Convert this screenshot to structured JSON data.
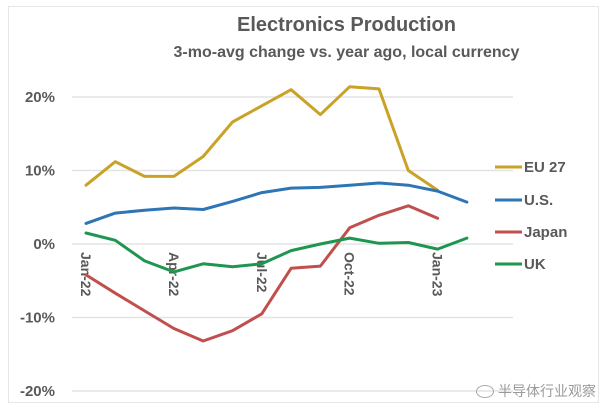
{
  "chart_data": {
    "type": "line",
    "title": "Electronics Production",
    "subtitle": "3-mo-avg change vs. year ago, local currency",
    "xlabel": "",
    "ylabel": "",
    "ylim": [
      -20,
      20
    ],
    "yticks": [
      20,
      10,
      0,
      -10,
      -20
    ],
    "ytick_labels": [
      "20%",
      "10%",
      "0%",
      "-10%",
      "-20%"
    ],
    "x": [
      "Jan-22",
      "Feb-22",
      "Mar-22",
      "Apr-22",
      "May-22",
      "Jun-22",
      "Jul-22",
      "Aug-22",
      "Sep-22",
      "Oct-22",
      "Nov-22",
      "Dec-22",
      "Jan-23",
      "Feb-23"
    ],
    "xtick_labels": [
      {
        "index": 0,
        "label": "Jan-22"
      },
      {
        "index": 3,
        "label": "Apr-22"
      },
      {
        "index": 6,
        "label": "Jul-22"
      },
      {
        "index": 9,
        "label": "Oct-22"
      },
      {
        "index": 12,
        "label": "Jan-23"
      }
    ],
    "grid": true,
    "legend_position": "right",
    "series": [
      {
        "name": "EU 27",
        "color": "#C9A227",
        "values": [
          8.0,
          11.2,
          9.2,
          9.2,
          11.9,
          16.6,
          18.8,
          21.0,
          17.6,
          21.4,
          21.1,
          10.0,
          7.3,
          null
        ]
      },
      {
        "name": "U.S.",
        "color": "#2E75B6",
        "values": [
          2.8,
          4.2,
          4.6,
          4.9,
          4.7,
          5.8,
          7.0,
          7.6,
          7.7,
          8.0,
          8.3,
          8.0,
          7.2,
          5.7
        ]
      },
      {
        "name": "Japan",
        "color": "#C0504D",
        "values": [
          -4.2,
          -6.7,
          -9.1,
          -11.5,
          -13.2,
          -11.8,
          -9.5,
          -3.3,
          -3.0,
          2.2,
          3.9,
          5.2,
          3.5,
          null
        ]
      },
      {
        "name": "UK",
        "color": "#1E9650",
        "values": [
          1.5,
          0.5,
          -2.3,
          -3.8,
          -2.7,
          -3.1,
          -2.7,
          -0.9,
          0.0,
          0.8,
          0.1,
          0.2,
          -0.7,
          0.8
        ]
      }
    ]
  },
  "watermark": {
    "text": "半导体行业观察",
    "icon": "wechat-icon"
  }
}
